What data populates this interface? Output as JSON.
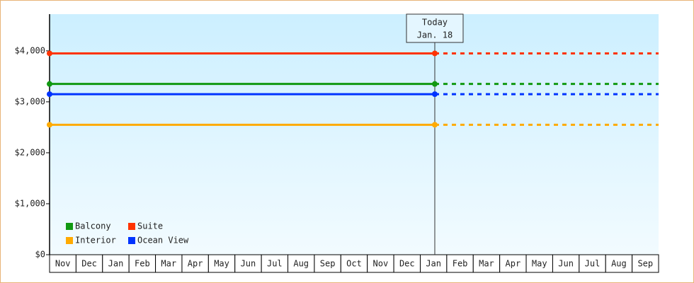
{
  "chart_data": {
    "type": "line",
    "categories": [
      "Nov",
      "Dec",
      "Jan",
      "Feb",
      "Mar",
      "Apr",
      "May",
      "Jun",
      "Jul",
      "Aug",
      "Sep",
      "Oct",
      "Nov",
      "Dec",
      "Jan",
      "Feb",
      "Mar",
      "Apr",
      "May",
      "Jun",
      "Jul",
      "Aug",
      "Sep"
    ],
    "series": [
      {
        "name": "Balcony",
        "color": "#119911",
        "value": 3350
      },
      {
        "name": "Suite",
        "color": "#ff3300",
        "value": 3950
      },
      {
        "name": "Interior",
        "color": "#ffaa00",
        "value": 2550
      },
      {
        "name": "Ocean View",
        "color": "#0033ff",
        "value": 3150
      }
    ],
    "today": {
      "label": "Today",
      "date": "Jan. 18"
    },
    "ylim": [
      0,
      4720
    ],
    "yticks": [
      {
        "value": 0,
        "label": "$0"
      },
      {
        "value": 1000,
        "label": "$1,000"
      },
      {
        "value": 2000,
        "label": "$2,000"
      },
      {
        "value": 3000,
        "label": "$3,000"
      },
      {
        "value": 4000,
        "label": "$4,000"
      }
    ],
    "legend": "lower left"
  }
}
